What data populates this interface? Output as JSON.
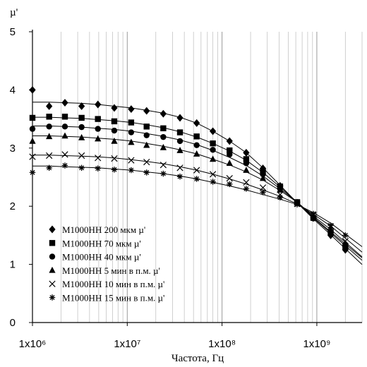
{
  "chart_data": {
    "type": "line",
    "title": "",
    "xlabel": "Частота, Гц",
    "ylabel": "µ'",
    "x_scale": "log",
    "xlim": [
      1000000,
      3000000000
    ],
    "ylim": [
      0,
      5
    ],
    "x_ticks": [
      1000000,
      10000000,
      100000000,
      1000000000
    ],
    "x_tick_labels": [
      "1x10⁶",
      "1x10⁷",
      "1x10⁸",
      "1x10⁹"
    ],
    "y_ticks": [
      0,
      1,
      2,
      3,
      4,
      5
    ],
    "y_tick_labels": [
      "0",
      "1",
      "2",
      "3",
      "4",
      "5"
    ],
    "grid": "vertical log grid only",
    "legend_position": "lower-left",
    "x": [
      1000000,
      1500000,
      2200000,
      3300000,
      4900000,
      7300000,
      11000000,
      16000000,
      24000000,
      36000000,
      54000000,
      80000000,
      120000000,
      180000000,
      270000000,
      410000000,
      620000000,
      920000000,
      1400000000,
      2000000000
    ],
    "series": [
      {
        "name": "M1000HH 200 мкм µ'",
        "marker": "diamond",
        "values": [
          4.0,
          3.72,
          3.78,
          3.72,
          3.75,
          3.69,
          3.67,
          3.64,
          3.59,
          3.52,
          3.43,
          3.29,
          3.12,
          2.92,
          2.65,
          2.35,
          2.06,
          1.8,
          1.5,
          1.25
        ],
        "fit": [
          3.79,
          3.79,
          3.78,
          3.77,
          3.75,
          3.72,
          3.69,
          3.65,
          3.6,
          3.53,
          3.43,
          3.29,
          3.12,
          2.92,
          2.66,
          2.36,
          2.06,
          1.78,
          1.51,
          1.27
        ]
      },
      {
        "name": "M1000HH 70 мкм µ'",
        "marker": "square",
        "values": [
          3.52,
          3.54,
          3.54,
          3.52,
          3.5,
          3.46,
          3.44,
          3.37,
          3.34,
          3.27,
          3.2,
          3.08,
          2.96,
          2.81,
          2.6,
          2.34,
          2.07,
          1.8,
          1.55,
          1.3
        ],
        "fit": [
          3.53,
          3.53,
          3.52,
          3.51,
          3.49,
          3.47,
          3.44,
          3.4,
          3.35,
          3.28,
          3.19,
          3.08,
          2.95,
          2.79,
          2.58,
          2.33,
          2.07,
          1.8,
          1.54,
          1.32
        ]
      },
      {
        "name": "M1000HH 40 мкм µ'",
        "marker": "circle",
        "values": [
          3.33,
          3.37,
          3.37,
          3.36,
          3.33,
          3.3,
          3.27,
          3.22,
          3.19,
          3.12,
          3.05,
          2.97,
          2.89,
          2.74,
          2.55,
          2.3,
          2.06,
          1.79,
          1.56,
          1.32
        ],
        "fit": [
          3.38,
          3.38,
          3.37,
          3.36,
          3.34,
          3.32,
          3.29,
          3.25,
          3.2,
          3.14,
          3.06,
          2.96,
          2.84,
          2.7,
          2.52,
          2.3,
          2.07,
          1.81,
          1.56,
          1.35
        ]
      },
      {
        "name": "M1000HH 5 мин в п.м. µ'",
        "marker": "triangle",
        "values": [
          3.12,
          3.2,
          3.21,
          3.18,
          3.16,
          3.12,
          3.1,
          3.05,
          3.01,
          2.96,
          2.9,
          2.81,
          2.74,
          2.62,
          2.48,
          2.28,
          2.06,
          1.81,
          1.6,
          1.35
        ],
        "fit": [
          3.21,
          3.21,
          3.2,
          3.19,
          3.17,
          3.15,
          3.12,
          3.08,
          3.03,
          2.97,
          2.9,
          2.81,
          2.71,
          2.59,
          2.45,
          2.27,
          2.07,
          1.83,
          1.6,
          1.38
        ]
      },
      {
        "name": "M1000HH 10 мин в п.м. µ'",
        "marker": "x",
        "values": [
          2.85,
          2.87,
          2.89,
          2.87,
          2.83,
          2.82,
          2.79,
          2.76,
          2.71,
          2.66,
          2.62,
          2.55,
          2.48,
          2.41,
          2.32,
          2.2,
          2.04,
          1.85,
          1.65,
          1.4
        ],
        "fit": [
          2.88,
          2.88,
          2.87,
          2.86,
          2.85,
          2.83,
          2.8,
          2.77,
          2.73,
          2.68,
          2.62,
          2.55,
          2.47,
          2.38,
          2.28,
          2.17,
          2.04,
          1.86,
          1.66,
          1.45
        ]
      },
      {
        "name": "M1000HH 15 мин в п.м. µ'",
        "marker": "asterisk",
        "values": [
          2.58,
          2.66,
          2.7,
          2.66,
          2.65,
          2.63,
          2.62,
          2.58,
          2.56,
          2.51,
          2.47,
          2.42,
          2.38,
          2.3,
          2.24,
          2.15,
          2.03,
          1.87,
          1.67,
          1.5
        ],
        "fit": [
          2.69,
          2.69,
          2.68,
          2.67,
          2.66,
          2.64,
          2.62,
          2.59,
          2.56,
          2.52,
          2.47,
          2.41,
          2.35,
          2.28,
          2.2,
          2.12,
          2.03,
          1.89,
          1.71,
          1.52
        ]
      }
    ]
  }
}
